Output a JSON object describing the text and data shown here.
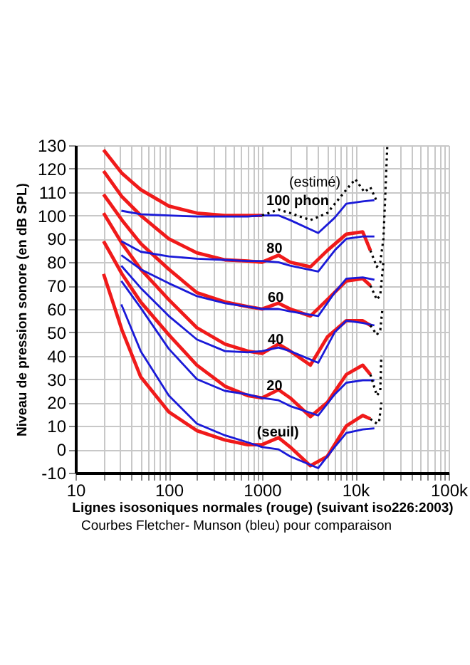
{
  "chart_data": {
    "type": "line",
    "xlabel": "Lignes isosoniques normales (rouge) (suivant iso226:2003)",
    "ylabel": "Niveau de pression sonore (en dB SPL)",
    "log": "x",
    "grid": true,
    "xlim": [
      10,
      100000
    ],
    "xticks": [
      10,
      {
        "value": 20,
        "label": null
      },
      {
        "value": 30,
        "label": null
      },
      {
        "value": 40,
        "label": null
      },
      {
        "value": 50,
        "label": null
      },
      {
        "value": 60,
        "label": null
      },
      {
        "value": 70,
        "label": null
      },
      {
        "value": 80,
        "label": null
      },
      {
        "value": 90,
        "label": null
      },
      100,
      {
        "value": 200,
        "label": null
      },
      {
        "value": 300,
        "label": null
      },
      {
        "value": 400,
        "label": null
      },
      {
        "value": 500,
        "label": null
      },
      {
        "value": 600,
        "label": null
      },
      {
        "value": 700,
        "label": null
      },
      {
        "value": 800,
        "label": null
      },
      {
        "value": 900,
        "label": null
      },
      1000,
      {
        "value": 2000,
        "label": null
      },
      {
        "value": 3000,
        "label": null
      },
      {
        "value": 4000,
        "label": null
      },
      {
        "value": 5000,
        "label": null
      },
      {
        "value": 6000,
        "label": null
      },
      {
        "value": 7000,
        "label": null
      },
      {
        "value": 8000,
        "label": null
      },
      {
        "value": 9000,
        "label": null
      },
      {
        "value": 10000,
        "label": "10k"
      },
      {
        "value": 20000,
        "label": null
      },
      {
        "value": 30000,
        "label": null
      },
      {
        "value": 40000,
        "label": null
      },
      {
        "value": 50000,
        "label": null
      },
      {
        "value": 60000,
        "label": null
      },
      {
        "value": 70000,
        "label": null
      },
      {
        "value": 80000,
        "label": null
      },
      {
        "value": 90000,
        "label": null
      },
      {
        "value": 100000,
        "label": "100k"
      }
    ],
    "ylim": [
      -10,
      130
    ],
    "yticks": [
      -10,
      0,
      10,
      20,
      30,
      40,
      50,
      60,
      70,
      80,
      90,
      100,
      110,
      120,
      130
    ],
    "series": [
      {
        "color": "#f01a1a",
        "x": [
          20,
          31.5,
          50,
          100,
          200,
          400,
          700,
          1000,
          1500,
          2000,
          3300,
          5000,
          8000,
          12000,
          14500
        ],
        "values": [
          75,
          51,
          31,
          16,
          8,
          4,
          2,
          2,
          5,
          1,
          -7,
          -3,
          10,
          14.5,
          13
        ]
      },
      {
        "color": "#f01a1a",
        "x": [
          20,
          31.5,
          50,
          100,
          200,
          400,
          700,
          1000,
          1500,
          2000,
          3300,
          5000,
          8000,
          12000,
          14500
        ],
        "values": [
          89,
          75,
          63,
          49,
          36,
          27,
          23,
          22,
          25.5,
          22,
          14,
          20,
          32,
          36,
          32
        ]
      },
      {
        "color": "#f01a1a",
        "x": [
          20,
          31.5,
          50,
          100,
          200,
          400,
          700,
          1000,
          1500,
          2000,
          3300,
          5000,
          8000,
          12000,
          14500
        ],
        "values": [
          101,
          88,
          77,
          64,
          52,
          45,
          42,
          41,
          45,
          42,
          36,
          48,
          55,
          55,
          53
        ]
      },
      {
        "color": "#f01a1a",
        "x": [
          20,
          31.5,
          50,
          100,
          200,
          400,
          700,
          1000,
          1500,
          2000,
          3300,
          5000,
          8000,
          12000,
          14500
        ],
        "values": [
          109,
          98,
          88,
          77,
          67,
          63,
          61,
          60,
          62.5,
          60,
          57,
          64,
          72,
          73,
          70
        ]
      },
      {
        "color": "#f01a1a",
        "x": [
          20,
          31.5,
          50,
          100,
          200,
          400,
          700,
          1000,
          1500,
          2000,
          3300,
          5000,
          8000,
          12000,
          14500
        ],
        "values": [
          119,
          108,
          100,
          90,
          84,
          81,
          80.5,
          80,
          83,
          80,
          78,
          85,
          92,
          93,
          85
        ]
      },
      {
        "color": "#f01a1a",
        "x": [
          20,
          31.5,
          50,
          100,
          200,
          400,
          700,
          1000
        ],
        "values": [
          128,
          118,
          111,
          104,
          101,
          100,
          100,
          100
        ]
      },
      {
        "color": "#1a1ad8",
        "x": [
          31,
          50,
          100,
          200,
          400,
          700,
          1000,
          1500,
          2000,
          4000,
          6000,
          8000,
          12000,
          16000
        ],
        "values": [
          62,
          42,
          23,
          11,
          6,
          3,
          1,
          0,
          -3,
          -8,
          1,
          7,
          8.5,
          9
        ]
      },
      {
        "color": "#1a1ad8",
        "x": [
          31,
          50,
          100,
          200,
          400,
          700,
          1000,
          1500,
          2000,
          4000,
          6000,
          8000,
          12000,
          16000
        ],
        "values": [
          72,
          60.5,
          43,
          30,
          25,
          23.5,
          22,
          21,
          18.5,
          14.5,
          23.5,
          28.5,
          29.5,
          29.5
        ]
      },
      {
        "color": "#1a1ad8",
        "x": [
          31,
          50,
          100,
          200,
          400,
          700,
          1000,
          1500,
          2000,
          4000,
          6000,
          8000,
          12000,
          16000
        ],
        "values": [
          78.5,
          69,
          57,
          47,
          42,
          41.5,
          42,
          43.5,
          42,
          37,
          50,
          55,
          54,
          53
        ]
      },
      {
        "color": "#1a1ad8",
        "x": [
          31,
          50,
          100,
          200,
          400,
          700,
          1000,
          1500,
          2000,
          4000,
          6000,
          8000,
          12000,
          16000
        ],
        "values": [
          83,
          77,
          71,
          65.5,
          62.5,
          61,
          60,
          60,
          59,
          57,
          67,
          73,
          73.5,
          72.5
        ]
      },
      {
        "color": "#1a1ad8",
        "x": [
          31,
          50,
          100,
          200,
          400,
          700,
          1000,
          1500,
          2000,
          4000,
          6000,
          8000,
          12000,
          16000
        ],
        "values": [
          89,
          84.5,
          82.5,
          81.5,
          81,
          80.5,
          80.5,
          80,
          78.5,
          76,
          85,
          90,
          91,
          91
        ]
      },
      {
        "color": "#1a1ad8",
        "x": [
          31,
          50,
          100,
          200,
          400,
          700,
          1000,
          1500,
          2000,
          4000,
          6000,
          8000,
          12000,
          16000
        ],
        "values": [
          102,
          100.5,
          100,
          99.5,
          99.5,
          99.5,
          100,
          100,
          98,
          92.5,
          99,
          105,
          106,
          106.5
        ]
      },
      {
        "color": "#000000",
        "line_style": "dotted",
        "x": [
          1000,
          1500,
          2000,
          3300,
          5000,
          8000,
          10000,
          12500,
          14500,
          17000
        ],
        "values": [
          100,
          102.5,
          101,
          98,
          101,
          111,
          115.5,
          110,
          112,
          106
        ]
      },
      {
        "color": "#000000",
        "line_style": "dotted",
        "x": [
          14500,
          17000,
          18500,
          20000,
          21000,
          22000
        ],
        "values": [
          85,
          78,
          80,
          90,
          110,
          130
        ]
      },
      {
        "color": "#000000",
        "line_style": "dotted",
        "x": [
          14500,
          17000,
          18500,
          20000
        ],
        "values": [
          70,
          64,
          66,
          80
        ]
      },
      {
        "color": "#000000",
        "line_style": "dotted",
        "x": [
          14500,
          17000,
          18500,
          19500
        ],
        "values": [
          53,
          49,
          51,
          60
        ]
      },
      {
        "color": "#000000",
        "line_style": "dotted",
        "x": [
          14500,
          17000,
          18500,
          19000
        ],
        "values": [
          32,
          23,
          25,
          40
        ]
      },
      {
        "color": "#000000",
        "line_style": "dotted",
        "x": [
          14500,
          17000,
          18000,
          19000
        ],
        "values": [
          13,
          11,
          12,
          20
        ]
      }
    ],
    "annotations": [
      "(estimé)",
      "100 phon",
      {
        "text": "80",
        "x": 1360,
        "y": 86
      },
      {
        "text": "60",
        "x": 1400,
        "y": 65
      },
      {
        "text": "40",
        "x": 1400,
        "y": 47
      },
      {
        "text": "20",
        "x": 1360,
        "y": 27
      },
      {
        "text": "(seuil)",
        "x": 1480,
        "y": 7.5
      },
      "Courbes Fletcher- Munson (bleu) pour comparaison"
    ]
  }
}
